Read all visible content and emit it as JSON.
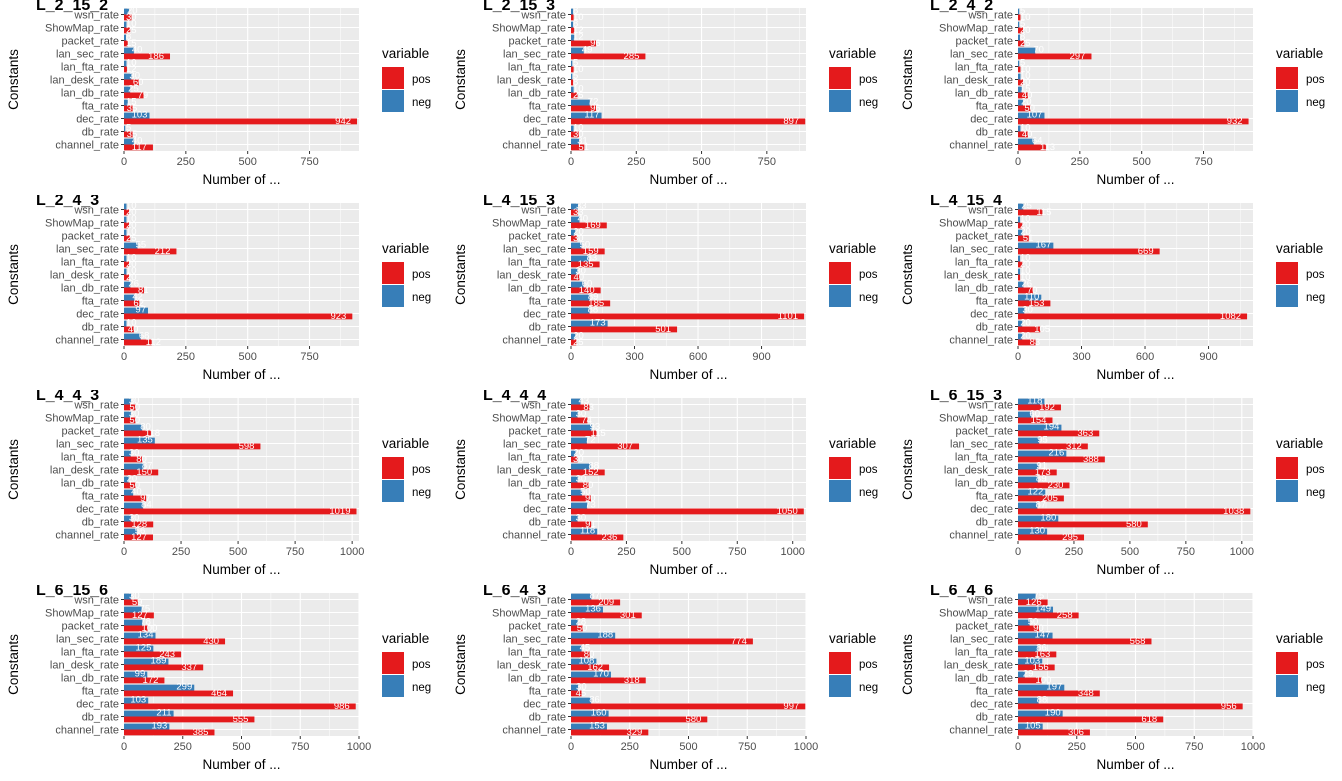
{
  "colors": {
    "pos": "#E41A1C",
    "neg": "#377EB8",
    "panel_bg": "#EBEBEB",
    "grid": "#FFFFFF",
    "text": "#4D4D4D"
  },
  "labels": {
    "y_axis": "Constants",
    "x_axis": "Number of ...",
    "legend_title": "variable",
    "legend_pos": "pos",
    "legend_neg": "neg"
  },
  "categories": [
    "wsn_rate",
    "ShowMap_rate",
    "packet_rate",
    "lan_sec_rate",
    "lan_fta_rate",
    "lan_desk_rate",
    "lan_db_rate",
    "fta_rate",
    "dec_rate",
    "db_rate",
    "channel_rate"
  ],
  "chart_data": [
    {
      "type": "bar",
      "title": "L_2_15_2",
      "categories": [
        "wsn_rate",
        "ShowMap_rate",
        "packet_rate",
        "lan_sec_rate",
        "lan_fta_rate",
        "lan_desk_rate",
        "lan_db_rate",
        "fta_rate",
        "dec_rate",
        "db_rate",
        "channel_rate"
      ],
      "series": [
        {
          "name": "pos",
          "values": [
            30,
            25,
            15,
            186,
            12,
            60,
            79,
            35,
            942,
            35,
            117
          ]
        },
        {
          "name": "neg",
          "values": [
            20,
            10,
            8,
            40,
            10,
            30,
            25,
            15,
            103,
            5,
            40
          ]
        }
      ],
      "xlim": [
        0,
        950
      ],
      "xticks": [
        0,
        250,
        500,
        750
      ]
    },
    {
      "type": "bar",
      "title": "L_2_15_3",
      "categories": [
        "wsn_rate",
        "ShowMap_rate",
        "packet_rate",
        "lan_sec_rate",
        "lan_fta_rate",
        "lan_desk_rate",
        "lan_db_rate",
        "fta_rate",
        "dec_rate",
        "db_rate",
        "channel_rate"
      ],
      "series": [
        {
          "name": "pos",
          "values": [
            10,
            12,
            96,
            285,
            10,
            8,
            25,
            96,
            897,
            30,
            51
          ]
        },
        {
          "name": "neg",
          "values": [
            8,
            8,
            12,
            49,
            5,
            5,
            10,
            72,
            117,
            10,
            31
          ]
        }
      ],
      "xlim": [
        0,
        900
      ],
      "xticks": [
        0,
        250,
        500,
        750
      ]
    },
    {
      "type": "bar",
      "title": "L_2_4_2",
      "categories": [
        "wsn_rate",
        "ShowMap_rate",
        "packet_rate",
        "lan_sec_rate",
        "lan_fta_rate",
        "lan_desk_rate",
        "lan_db_rate",
        "fta_rate",
        "dec_rate",
        "db_rate",
        "channel_rate"
      ],
      "series": [
        {
          "name": "pos",
          "values": [
            10,
            20,
            25,
            297,
            10,
            20,
            40,
            50,
            932,
            40,
            113
          ]
        },
        {
          "name": "neg",
          "values": [
            5,
            5,
            8,
            70,
            5,
            10,
            15,
            20,
            107,
            10,
            64
          ]
        }
      ],
      "xlim": [
        0,
        950
      ],
      "xticks": [
        0,
        250,
        500,
        750
      ]
    },
    {
      "type": "bar",
      "title": "L_2_4_3",
      "categories": [
        "wsn_rate",
        "ShowMap_rate",
        "packet_rate",
        "lan_sec_rate",
        "lan_fta_rate",
        "lan_desk_rate",
        "lan_db_rate",
        "fta_rate",
        "dec_rate",
        "db_rate",
        "channel_rate"
      ],
      "series": [
        {
          "name": "pos",
          "values": [
            20,
            20,
            25,
            212,
            20,
            20,
            81,
            62,
            923,
            40,
            112
          ]
        },
        {
          "name": "neg",
          "values": [
            10,
            10,
            10,
            55,
            10,
            10,
            26,
            42,
            97,
            10,
            68
          ]
        }
      ],
      "xlim": [
        0,
        950
      ],
      "xticks": [
        0,
        250,
        500,
        750
      ]
    },
    {
      "type": "bar",
      "title": "L_4_15_3",
      "categories": [
        "wsn_rate",
        "ShowMap_rate",
        "packet_rate",
        "lan_sec_rate",
        "lan_fta_rate",
        "lan_desk_rate",
        "lan_db_rate",
        "fta_rate",
        "dec_rate",
        "db_rate",
        "channel_rate"
      ],
      "series": [
        {
          "name": "pos",
          "values": [
            33,
            169,
            30,
            159,
            135,
            40,
            140,
            185,
            1101,
            501,
            25
          ]
        },
        {
          "name": "neg",
          "values": [
            33,
            40,
            20,
            50,
            83,
            30,
            60,
            89,
            88,
            173,
            20
          ]
        }
      ],
      "xlim": [
        0,
        1110
      ],
      "xticks": [
        0,
        300,
        600,
        900
      ]
    },
    {
      "type": "bar",
      "title": "L_4_15_4",
      "categories": [
        "wsn_rate",
        "ShowMap_rate",
        "packet_rate",
        "lan_sec_rate",
        "lan_fta_rate",
        "lan_desk_rate",
        "lan_db_rate",
        "fta_rate",
        "dec_rate",
        "db_rate",
        "channel_rate"
      ],
      "series": [
        {
          "name": "pos",
          "values": [
            115,
            20,
            51,
            669,
            20,
            10,
            70,
            153,
            1082,
            105,
            83
          ]
        },
        {
          "name": "neg",
          "values": [
            25,
            10,
            20,
            167,
            10,
            10,
            26,
            110,
            30,
            20,
            20
          ]
        }
      ],
      "xlim": [
        0,
        1110
      ],
      "xticks": [
        0,
        300,
        600,
        900
      ]
    },
    {
      "type": "bar",
      "title": "L_4_4_3",
      "categories": [
        "wsn_rate",
        "ShowMap_rate",
        "packet_rate",
        "lan_sec_rate",
        "lan_fta_rate",
        "lan_desk_rate",
        "lan_db_rate",
        "fta_rate",
        "dec_rate",
        "db_rate",
        "channel_rate"
      ],
      "series": [
        {
          "name": "pos",
          "values": [
            50,
            50,
            118,
            598,
            80,
            150,
            50,
            97,
            1019,
            128,
            127
          ]
        },
        {
          "name": "neg",
          "values": [
            30,
            30,
            80,
            135,
            30,
            87,
            20,
            40,
            84,
            30,
            56
          ]
        }
      ],
      "xlim": [
        0,
        1030
      ],
      "xticks": [
        0,
        250,
        500,
        750,
        1000
      ]
    },
    {
      "type": "bar",
      "title": "L_4_4_4",
      "categories": [
        "wsn_rate",
        "ShowMap_rate",
        "packet_rate",
        "lan_sec_rate",
        "lan_fta_rate",
        "lan_desk_rate",
        "lan_db_rate",
        "fta_rate",
        "dec_rate",
        "db_rate",
        "channel_rate"
      ],
      "series": [
        {
          "name": "pos",
          "values": [
            83,
            74,
            115,
            307,
            30,
            152,
            80,
            90,
            1050,
            91,
            236
          ]
        },
        {
          "name": "neg",
          "values": [
            43,
            30,
            93,
            72,
            20,
            88,
            30,
            50,
            73,
            30,
            118
          ]
        }
      ],
      "xlim": [
        0,
        1060
      ],
      "xticks": [
        0,
        250,
        500,
        750,
        1000
      ]
    },
    {
      "type": "bar",
      "title": "L_6_15_3",
      "categories": [
        "wsn_rate",
        "ShowMap_rate",
        "packet_rate",
        "lan_sec_rate",
        "lan_fta_rate",
        "lan_desk_rate",
        "lan_db_rate",
        "fta_rate",
        "dec_rate",
        "db_rate",
        "channel_rate"
      ],
      "series": [
        {
          "name": "pos",
          "values": [
            192,
            154,
            363,
            312,
            388,
            173,
            230,
            205,
            1038,
            580,
            295
          ]
        },
        {
          "name": "neg",
          "values": [
            118,
            60,
            194,
            95,
            216,
            91,
            89,
            122,
            87,
            180,
            130
          ]
        }
      ],
      "xlim": [
        0,
        1050
      ],
      "xticks": [
        0,
        250,
        500,
        750,
        1000
      ]
    },
    {
      "type": "bar",
      "title": "L_6_15_6",
      "categories": [
        "wsn_rate",
        "ShowMap_rate",
        "packet_rate",
        "lan_sec_rate",
        "lan_fta_rate",
        "lan_desk_rate",
        "lan_db_rate",
        "fta_rate",
        "dec_rate",
        "db_rate",
        "channel_rate"
      ],
      "series": [
        {
          "name": "pos",
          "values": [
            59,
            127,
            100,
            430,
            243,
            337,
            172,
            464,
            986,
            555,
            385
          ]
        },
        {
          "name": "neg",
          "values": [
            30,
            75,
            78,
            134,
            125,
            189,
            99,
            299,
            103,
            211,
            193
          ]
        }
      ],
      "xlim": [
        0,
        1000
      ],
      "xticks": [
        0,
        250,
        500,
        750,
        1000
      ]
    },
    {
      "type": "bar",
      "title": "L_6_4_3",
      "categories": [
        "wsn_rate",
        "ShowMap_rate",
        "packet_rate",
        "lan_sec_rate",
        "lan_fta_rate",
        "lan_desk_rate",
        "lan_db_rate",
        "fta_rate",
        "dec_rate",
        "db_rate",
        "channel_rate"
      ],
      "series": [
        {
          "name": "pos",
          "values": [
            209,
            301,
            50,
            774,
            80,
            162,
            318,
            45,
            997,
            580,
            329
          ]
        },
        {
          "name": "neg",
          "values": [
            87,
            136,
            28,
            188,
            45,
            108,
            170,
            30,
            86,
            160,
            153
          ]
        }
      ],
      "xlim": [
        0,
        1000
      ],
      "xticks": [
        0,
        250,
        500,
        750,
        1000
      ]
    },
    {
      "type": "bar",
      "title": "L_6_4_6",
      "categories": [
        "wsn_rate",
        "ShowMap_rate",
        "packet_rate",
        "lan_sec_rate",
        "lan_fta_rate",
        "lan_desk_rate",
        "lan_db_rate",
        "fta_rate",
        "dec_rate",
        "db_rate",
        "channel_rate"
      ],
      "series": [
        {
          "name": "pos",
          "values": [
            126,
            258,
            90,
            568,
            163,
            156,
            100,
            348,
            956,
            618,
            306
          ]
        },
        {
          "name": "neg",
          "values": [
            75,
            149,
            50,
            147,
            86,
            103,
            29,
            197,
            88,
            190,
            105
          ]
        }
      ],
      "xlim": [
        0,
        1000
      ],
      "xticks": [
        0,
        250,
        500,
        750,
        1000
      ]
    }
  ]
}
